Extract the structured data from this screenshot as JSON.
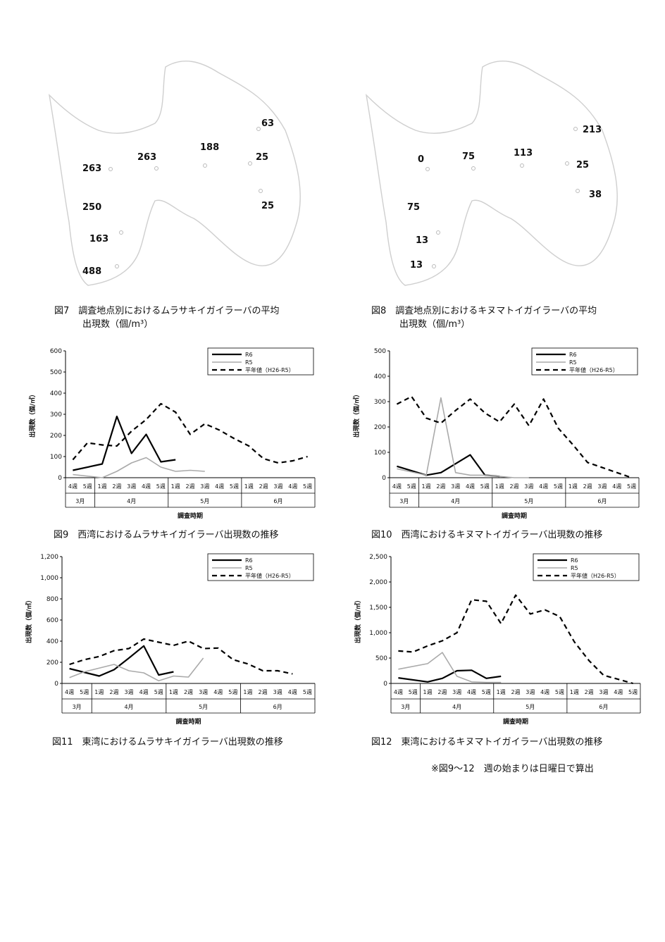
{
  "maps": [
    {
      "points": [
        {
          "label": "263"
        },
        {
          "label": "263"
        },
        {
          "label": "188"
        },
        {
          "label": "63"
        },
        {
          "label": "25"
        },
        {
          "label": "250"
        },
        {
          "label": "25"
        },
        {
          "label": "163"
        },
        {
          "label": "488"
        }
      ],
      "caption_line1": "図7　調査地点別におけるムラサキイガイラーバの平均",
      "caption_line2": "出現数（個/m³）"
    },
    {
      "points": [
        {
          "label": "0"
        },
        {
          "label": "75"
        },
        {
          "label": "113"
        },
        {
          "label": "213"
        },
        {
          "label": "25"
        },
        {
          "label": "38"
        },
        {
          "label": "75"
        },
        {
          "label": "13"
        },
        {
          "label": "13"
        }
      ],
      "caption_line1": "図8　調査地点別におけるキヌマトイガイラーバの平均",
      "caption_line2": "出現数（個/m³）"
    }
  ],
  "colors": {
    "r6": "#000000",
    "r5": "#aaaaaa",
    "avg": "#000000"
  },
  "chart_data": [
    {
      "type": "line",
      "caption": "図9　西湾におけるムラサキイガイラーバ出現数の推移",
      "ylabel": "出現数（個/㎥）",
      "xlabel": "調査時期",
      "ylim": [
        0,
        600
      ],
      "yticks": [
        "0",
        "100",
        "200",
        "300",
        "400",
        "500",
        "600"
      ],
      "weeks": [
        "4週",
        "5週",
        "1週",
        "2週",
        "3週",
        "4週",
        "5週",
        "1週",
        "2週",
        "3週",
        "4週",
        "5週",
        "1週",
        "2週",
        "3週",
        "4週",
        "5週"
      ],
      "months": [
        {
          "label": "3月",
          "span": 2
        },
        {
          "label": "4月",
          "span": 5
        },
        {
          "label": "5月",
          "span": 5
        },
        {
          "label": "6月",
          "span": 5
        }
      ],
      "series": [
        {
          "name": "R6",
          "values": [
            35,
            null,
            65,
            290,
            115,
            205,
            75,
            85,
            null,
            null,
            null,
            null,
            null,
            null,
            null,
            null,
            null
          ]
        },
        {
          "name": "R5",
          "values": [
            15,
            null,
            0,
            30,
            70,
            95,
            50,
            30,
            35,
            30,
            null,
            null,
            null,
            null,
            null,
            null,
            null
          ]
        },
        {
          "name": "平年値（H26-R5）",
          "values": [
            85,
            165,
            155,
            150,
            220,
            275,
            350,
            310,
            205,
            255,
            225,
            185,
            150,
            90,
            70,
            80,
            100
          ]
        }
      ]
    },
    {
      "type": "line",
      "caption": "図10　西湾におけるキヌマトイガイラーバ出現数の推移",
      "ylabel": "出現数（個/㎥）",
      "xlabel": "調査時期",
      "ylim": [
        0,
        500
      ],
      "yticks": [
        "0",
        "100",
        "200",
        "300",
        "400",
        "500"
      ],
      "weeks": [
        "4週",
        "5週",
        "1週",
        "2週",
        "3週",
        "4週",
        "5週",
        "1週",
        "2週",
        "3週",
        "4週",
        "5週",
        "1週",
        "2週",
        "3週",
        "4週",
        "5週"
      ],
      "months": [
        {
          "label": "3月",
          "span": 2
        },
        {
          "label": "4月",
          "span": 5
        },
        {
          "label": "5月",
          "span": 5
        },
        {
          "label": "6月",
          "span": 5
        }
      ],
      "series": [
        {
          "name": "R6",
          "values": [
            45,
            null,
            10,
            20,
            55,
            90,
            10,
            5,
            null,
            null,
            null,
            null,
            null,
            null,
            null,
            null,
            null
          ]
        },
        {
          "name": "R5",
          "values": [
            35,
            null,
            10,
            315,
            20,
            10,
            10,
            5,
            0,
            0,
            null,
            null,
            null,
            null,
            null,
            null,
            null
          ]
        },
        {
          "name": "平年値（H26-R5）",
          "values": [
            290,
            320,
            235,
            215,
            265,
            310,
            255,
            220,
            290,
            205,
            310,
            195,
            130,
            60,
            40,
            20,
            0
          ]
        }
      ]
    },
    {
      "type": "line",
      "caption": "図11　東湾におけるムラサキイガイラーバ出現数の推移",
      "ylabel": "出現数（個/㎥）",
      "xlabel": "調査時期",
      "ylim": [
        0,
        1200
      ],
      "yticks": [
        "0",
        "200",
        "400",
        "600",
        "800",
        "1,000",
        "1,200"
      ],
      "weeks": [
        "4週",
        "5週",
        "1週",
        "2週",
        "3週",
        "4週",
        "5週",
        "1週",
        "2週",
        "3週",
        "4週",
        "5週",
        "1週",
        "2週",
        "3週",
        "4週",
        "5週"
      ],
      "months": [
        {
          "label": "3月",
          "span": 2
        },
        {
          "label": "4月",
          "span": 5
        },
        {
          "label": "5月",
          "span": 5
        },
        {
          "label": "6月",
          "span": 5
        }
      ],
      "series": [
        {
          "name": "R6",
          "values": [
            140,
            null,
            70,
            130,
            240,
            355,
            80,
            110,
            null,
            null,
            null,
            null,
            null,
            null,
            null,
            null,
            null
          ]
        },
        {
          "name": "R5",
          "values": [
            55,
            110,
            null,
            180,
            120,
            100,
            25,
            70,
            60,
            240,
            null,
            null,
            null,
            null,
            null,
            null,
            null
          ]
        },
        {
          "name": "平年値（H26-R5）",
          "values": [
            180,
            225,
            255,
            310,
            330,
            420,
            390,
            360,
            400,
            330,
            335,
            225,
            185,
            120,
            120,
            90,
            null
          ]
        }
      ]
    },
    {
      "type": "line",
      "caption": "図12　東湾におけるキヌマトイガイラーバ出現数の推移",
      "ylabel": "出現数（個/㎥）",
      "xlabel": "調査時期",
      "ylim": [
        0,
        2500
      ],
      "yticks": [
        "0",
        "500",
        "1,000",
        "1,500",
        "2,000",
        "2,500"
      ],
      "weeks": [
        "4週",
        "5週",
        "1週",
        "2週",
        "3週",
        "4週",
        "5週",
        "1週",
        "2週",
        "3週",
        "4週",
        "5週",
        "1週",
        "2週",
        "3週",
        "4週",
        "5週"
      ],
      "months": [
        {
          "label": "3月",
          "span": 2
        },
        {
          "label": "4月",
          "span": 5
        },
        {
          "label": "5月",
          "span": 5
        },
        {
          "label": "6月",
          "span": 5
        }
      ],
      "series": [
        {
          "name": "R6",
          "values": [
            110,
            null,
            30,
            100,
            250,
            260,
            100,
            140,
            null,
            null,
            null,
            null,
            null,
            null,
            null,
            null,
            null
          ]
        },
        {
          "name": "R5",
          "values": [
            280,
            null,
            390,
            610,
            140,
            30,
            20,
            20,
            null,
            null,
            null,
            null,
            null,
            null,
            null,
            null,
            null
          ]
        },
        {
          "name": "平年値（H26-R5）",
          "values": [
            640,
            620,
            740,
            840,
            1000,
            1650,
            1620,
            1180,
            1740,
            1370,
            1450,
            1320,
            820,
            450,
            160,
            80,
            0
          ]
        }
      ]
    }
  ],
  "legend": {
    "r6": "R6",
    "r5": "R5",
    "avg": "平年値（H26-R5）"
  },
  "note": "※図9～12　週の始まりは日曜日で算出"
}
